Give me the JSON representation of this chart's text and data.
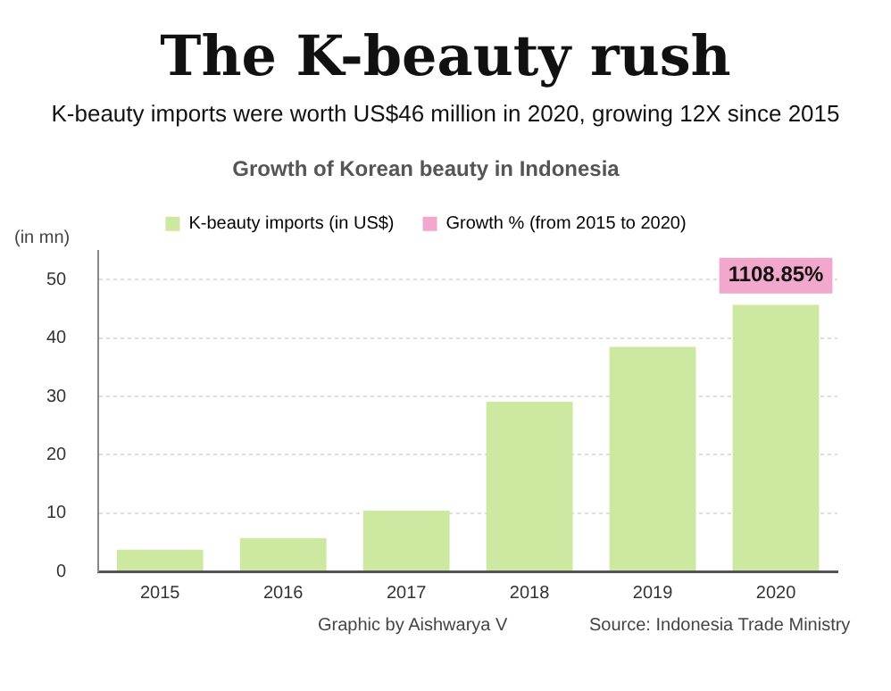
{
  "chart_data": {
    "type": "bar",
    "title": "The K-beauty rush",
    "subtitle": "K-beauty imports were worth US$46 million in 2020, growing 12X since 2015",
    "categories": [
      "2015",
      "2016",
      "2017",
      "2018",
      "2019",
      "2020"
    ],
    "series": [
      {
        "name": "K-beauty imports (in US$)",
        "color": "#cde8a0",
        "values": [
          3.7,
          5.7,
          10.4,
          29.1,
          38.5,
          45.7
        ]
      },
      {
        "name": "Growth % (from 2015 to 2020)",
        "color": "#f2a7cc",
        "values": [
          null,
          null,
          null,
          null,
          null,
          null
        ]
      }
    ],
    "ylabel": "(in mn)",
    "ylim": [
      0,
      55
    ],
    "yticks": [
      0,
      10,
      20,
      30,
      40,
      50
    ],
    "grid": "y",
    "legend": "top",
    "annotations": [
      "Growth of Korean beauty in Indonesia",
      "Graphic by Aishwarya V",
      "Source: Indonesia Trade Ministry",
      "1108.85%"
    ]
  }
}
